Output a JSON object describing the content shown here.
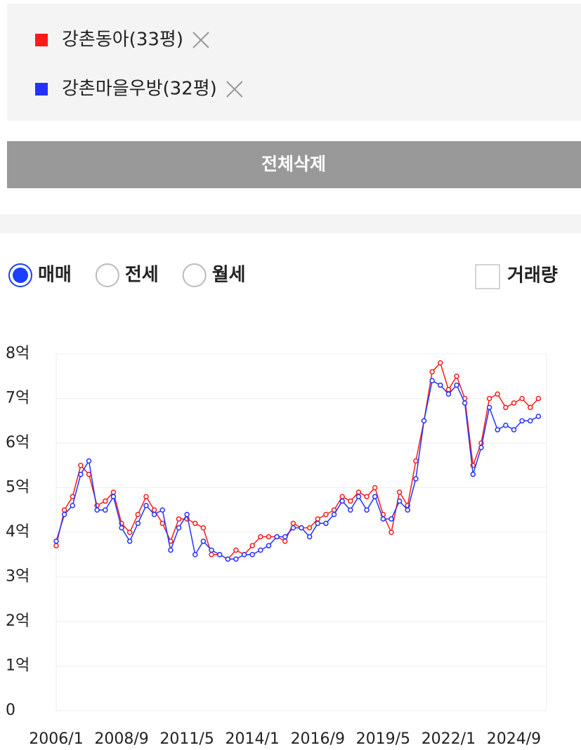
{
  "legend_list_actions": {
    "button": "전체삭제"
  },
  "trade_options": [
    {
      "label": "매매",
      "selected": true
    },
    {
      "label": "전세",
      "selected": false
    },
    {
      "label": "월세",
      "selected": false
    }
  ],
  "volume_checkbox": {
    "label": "거래량",
    "checked": false
  },
  "chart_data": {
    "type": "line",
    "x": [
      "2006/1",
      "2006/5",
      "2006/9",
      "2007/1",
      "2007/5",
      "2007/9",
      "2008/1",
      "2008/5",
      "2008/9",
      "2009/1",
      "2009/5",
      "2009/9",
      "2010/1",
      "2010/5",
      "2010/9",
      "2011/1",
      "2011/5",
      "2011/9",
      "2012/1",
      "2012/5",
      "2012/9",
      "2013/1",
      "2013/5",
      "2013/9",
      "2014/1",
      "2014/5",
      "2014/9",
      "2015/1",
      "2015/5",
      "2015/9",
      "2016/1",
      "2016/5",
      "2016/9",
      "2017/1",
      "2017/5",
      "2017/9",
      "2018/1",
      "2018/5",
      "2018/9",
      "2019/1",
      "2019/5",
      "2019/9",
      "2020/1",
      "2020/5",
      "2020/9",
      "2021/1",
      "2021/5",
      "2021/9",
      "2022/1",
      "2022/5",
      "2022/9",
      "2023/1",
      "2023/5",
      "2023/9",
      "2024/1",
      "2024/5",
      "2024/9",
      "2025/1",
      "2025/5",
      "2025/9"
    ],
    "series": [
      {
        "name": "강촌동아(33평)",
        "color": "#ff1a1a",
        "values": [
          3.7,
          4.5,
          4.8,
          5.5,
          5.3,
          4.6,
          4.7,
          4.9,
          4.2,
          4.0,
          4.4,
          4.8,
          4.5,
          4.2,
          3.8,
          4.3,
          4.3,
          4.2,
          4.1,
          3.5,
          3.5,
          3.4,
          3.6,
          3.5,
          3.7,
          3.9,
          3.9,
          3.9,
          3.8,
          4.2,
          4.1,
          4.1,
          4.3,
          4.4,
          4.5,
          4.8,
          4.7,
          4.9,
          4.8,
          5.0,
          4.4,
          4.0,
          4.9,
          4.6,
          5.6,
          6.5,
          7.6,
          7.8,
          7.2,
          7.5,
          7.0,
          5.5,
          6.0,
          7.0,
          7.1,
          6.8,
          6.9,
          7.0,
          6.8,
          7.0
        ]
      },
      {
        "name": "강촌마을우방(32평)",
        "color": "#2233ff",
        "values": [
          3.8,
          4.4,
          4.6,
          5.3,
          5.6,
          4.5,
          4.5,
          4.8,
          4.1,
          3.8,
          4.2,
          4.6,
          4.4,
          4.5,
          3.6,
          4.1,
          4.4,
          3.5,
          3.8,
          3.6,
          3.5,
          3.4,
          3.4,
          3.5,
          3.5,
          3.6,
          3.7,
          3.9,
          3.9,
          4.1,
          4.1,
          3.9,
          4.2,
          4.2,
          4.4,
          4.7,
          4.5,
          4.8,
          4.5,
          4.8,
          4.3,
          4.3,
          4.7,
          4.5,
          5.2,
          6.5,
          7.4,
          7.3,
          7.1,
          7.3,
          6.9,
          5.3,
          5.9,
          6.8,
          6.3,
          6.4,
          6.3,
          6.5,
          6.5,
          6.6
        ]
      }
    ],
    "xlim": [
      "2006/1",
      "2026/1"
    ],
    "xticks": [
      "2006/1",
      "2008/9",
      "2011/5",
      "2014/1",
      "2016/9",
      "2019/5",
      "2022/1",
      "2024/9"
    ],
    "ylim": [
      0,
      8
    ],
    "yticks": [
      0,
      {
        "value": 1,
        "label": "1억"
      },
      {
        "value": 2,
        "label": "2억"
      },
      {
        "value": 3,
        "label": "3억"
      },
      {
        "value": 4,
        "label": "4억"
      },
      {
        "value": 5,
        "label": "5억"
      },
      {
        "value": 6,
        "label": "6억"
      },
      {
        "value": 7,
        "label": "7억"
      },
      {
        "value": 8,
        "label": "8억"
      }
    ],
    "grid": true
  }
}
